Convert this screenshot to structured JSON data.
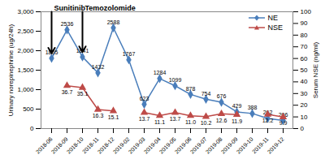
{
  "chart_data": {
    "type": "line",
    "categories": [
      "2018-06",
      "2018-09",
      "2018-10",
      "2018-11",
      "2018-12",
      "2019-02",
      "2019-03",
      "2019-04",
      "2019-05",
      "2019-06",
      "2019-07",
      "2019-08",
      "2019-09",
      "2019-10",
      "2019-11",
      "2019-12"
    ],
    "series": [
      {
        "name": "NE",
        "color": "#4a7ebb",
        "marker": "diamond",
        "values": [
          1805,
          2536,
          1841,
          1432,
          2588,
          1767,
          623,
          1284,
          1099,
          878,
          754,
          676,
          429,
          388,
          262,
          206
        ]
      },
      {
        "name": "NSE",
        "axis": "y2",
        "color": "#be4b48",
        "marker": "triangle",
        "values": [
          null,
          36.7,
          35.1,
          16.3,
          15.1,
          null,
          13.7,
          11.1,
          13.7,
          11.0,
          10.2,
          12.6,
          11.9,
          null,
          12.2,
          9.9
        ],
        "value_labels": [
          null,
          "36.7",
          "35.1",
          "16.3",
          "15.1",
          null,
          "13.7",
          "11.1",
          "13.7",
          "11.0",
          "10.2",
          "12.6",
          "11.9",
          null,
          "12.2",
          "9.9"
        ]
      }
    ],
    "ylabel": "Urinary norepinephrine (ug/24h)",
    "y2label": "Serum NSE (ng/ml)",
    "ylim": [
      0,
      3000
    ],
    "yticks": [
      0,
      500,
      1000,
      1500,
      2000,
      2500,
      3000
    ],
    "y2lim": [
      0,
      100
    ],
    "y2ticks": [
      0,
      10,
      20,
      30,
      40,
      50,
      60,
      70,
      80,
      90,
      100
    ],
    "legend": "top-right",
    "data_labels": true,
    "annotations": [
      {
        "text": "Sunitinib",
        "x": "2018-06"
      },
      {
        "text": "Temozolomide",
        "x": "2018-10"
      }
    ]
  }
}
